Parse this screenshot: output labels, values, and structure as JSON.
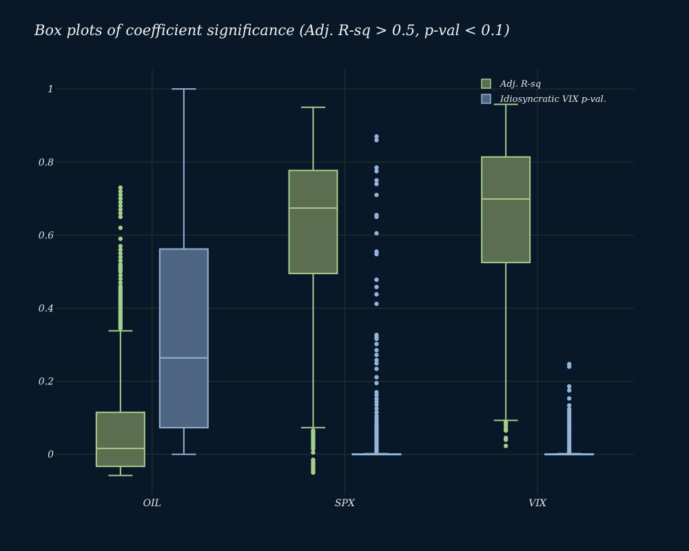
{
  "chart_data": {
    "type": "box",
    "title": "Box plots of coefficient significance (Adj. R-sq > 0.5, p-val < 0.1)",
    "xlabel": "",
    "ylabel": "",
    "ylim": [
      -0.11,
      1.055
    ],
    "y_ticks": [
      0,
      0.2,
      0.4,
      0.6,
      0.8,
      1
    ],
    "y_tick_labels": [
      "0",
      "0.2",
      "0.4",
      "0.6",
      "0.8",
      "1"
    ],
    "categories": [
      "OIL",
      "SPX",
      "VIX"
    ],
    "grid": true,
    "legend_position": "top-right",
    "series": [
      {
        "name": "Adj. R-sq",
        "line_color": "#a6cf8c",
        "fill_color": "#5b6e50",
        "boxes": [
          {
            "category": "OIL",
            "lower_whisker": -0.058,
            "q1": -0.033,
            "median": 0.016,
            "q3": 0.115,
            "upper_whisker": 0.338,
            "outliers": [
              0.345,
              0.35,
              0.355,
              0.36,
              0.365,
              0.37,
              0.375,
              0.38,
              0.385,
              0.39,
              0.395,
              0.4,
              0.405,
              0.41,
              0.415,
              0.42,
              0.425,
              0.43,
              0.435,
              0.44,
              0.445,
              0.45,
              0.455,
              0.46,
              0.47,
              0.48,
              0.49,
              0.5,
              0.505,
              0.51,
              0.515,
              0.52,
              0.53,
              0.54,
              0.55,
              0.56,
              0.57,
              0.59,
              0.62,
              0.65,
              0.66,
              0.67,
              0.68,
              0.69,
              0.7,
              0.71,
              0.72,
              0.73
            ]
          },
          {
            "category": "SPX",
            "lower_whisker": 0.073,
            "q1": 0.495,
            "median": 0.674,
            "q3": 0.777,
            "upper_whisker": 0.95,
            "outliers": [
              0.065,
              0.06,
              0.055,
              0.05,
              0.045,
              0.04,
              0.035,
              0.03,
              0.025,
              0.02,
              0.015,
              0.005,
              -0.015,
              -0.02,
              -0.025,
              -0.03,
              -0.035,
              -0.04,
              -0.045,
              -0.05
            ]
          },
          {
            "category": "VIX",
            "lower_whisker": 0.093,
            "q1": 0.525,
            "median": 0.699,
            "q3": 0.814,
            "upper_whisker": 0.958,
            "outliers": [
              0.088,
              0.083,
              0.078,
              0.07,
              0.065,
              0.045,
              0.04,
              0.023
            ]
          }
        ]
      },
      {
        "name": "Idiosyncratic VIX p-val.",
        "line_color": "#94b4d8",
        "fill_color": "#4d6580",
        "boxes": [
          {
            "category": "OIL",
            "lower_whisker": 0.0,
            "q1": 0.073,
            "median": 0.264,
            "q3": 0.562,
            "upper_whisker": 1.0,
            "outliers": []
          },
          {
            "category": "SPX",
            "lower_whisker": 0.0,
            "q1": 0.0,
            "median": 0.0,
            "q3": 0.001,
            "upper_whisker": 0.002,
            "outliers": [
              0.87,
              0.86,
              0.785,
              0.775,
              0.75,
              0.74,
              0.71,
              0.655,
              0.65,
              0.605,
              0.555,
              0.548,
              0.478,
              0.458,
              0.438,
              0.412,
              0.327,
              0.322,
              0.316,
              0.302,
              0.285,
              0.272,
              0.258,
              0.249,
              0.234,
              0.211,
              0.195,
              0.17,
              0.162,
              0.152,
              0.144,
              0.135,
              0.125,
              0.115,
              0.105,
              0.098,
              0.09,
              0.083,
              0.077,
              0.071,
              0.066,
              0.061,
              0.056,
              0.051,
              0.046,
              0.041,
              0.036,
              0.031,
              0.026,
              0.021,
              0.016,
              0.011,
              0.007
            ]
          },
          {
            "category": "VIX",
            "lower_whisker": 0.0,
            "q1": 0.0,
            "median": 0.0,
            "q3": 0.001,
            "upper_whisker": 0.002,
            "outliers": [
              0.247,
              0.24,
              0.186,
              0.175,
              0.153,
              0.134,
              0.124,
              0.118,
              0.112,
              0.106,
              0.1,
              0.094,
              0.088,
              0.082,
              0.076,
              0.07,
              0.064,
              0.058,
              0.052,
              0.046,
              0.04,
              0.034,
              0.028,
              0.022,
              0.016,
              0.01,
              0.006
            ]
          }
        ]
      }
    ]
  }
}
